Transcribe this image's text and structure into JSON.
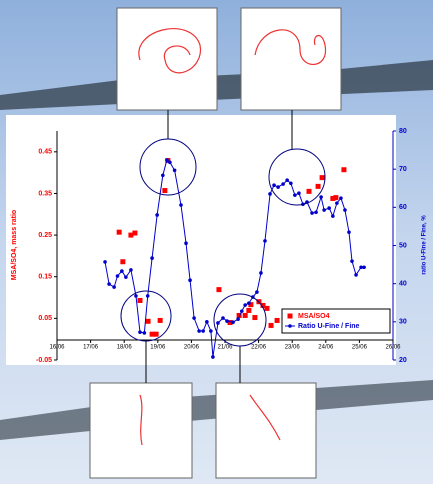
{
  "chart_data": {
    "type": "scatter-line",
    "x_label_left": "MSA/SO4, mass ratio",
    "y2_label": "ratio U-Fine / Fine, %",
    "xlim": [
      16,
      26
    ],
    "xticks": [
      {
        "value": 16,
        "label": "16/06"
      },
      {
        "value": 17,
        "label": "17/06"
      },
      {
        "value": 18,
        "label": "18/06"
      },
      {
        "value": 19,
        "label": "19/06"
      },
      {
        "value": 20,
        "label": "20/06"
      },
      {
        "value": 21,
        "label": "21/06"
      },
      {
        "value": 22,
        "label": "22/06"
      },
      {
        "value": 23,
        "label": "23/06"
      },
      {
        "value": 24,
        "label": "24/06"
      },
      {
        "value": 25,
        "label": "25/06"
      },
      {
        "value": 26,
        "label": "26/06"
      }
    ],
    "ylim": [
      -0.05,
      0.5
    ],
    "yticks": [
      -0.05,
      0.05,
      0.15,
      0.25,
      0.35,
      0.45
    ],
    "y2lim": [
      20,
      80
    ],
    "y2ticks": [
      20,
      30,
      40,
      50,
      60,
      70,
      80
    ],
    "legend": "lower right",
    "series": [
      {
        "name": "MSA/SO4",
        "color": "#ff0000",
        "marker": "square",
        "line": false,
        "x": [
          17.85,
          17.96,
          18.2,
          18.32,
          18.47,
          18.71,
          18.83,
          18.95,
          19.07,
          19.21,
          19.3,
          20.82,
          21.15,
          21.42,
          21.6,
          21.71,
          21.77,
          21.89,
          22.01,
          22.13,
          22.25,
          22.37,
          22.55,
          23.5,
          23.77,
          23.89,
          24.21,
          24.3,
          24.54
        ],
        "values": [
          0.257,
          0.186,
          0.25,
          0.255,
          0.093,
          0.043,
          0.012,
          0.012,
          0.045,
          0.357,
          0.429,
          0.119,
          0.04,
          0.057,
          0.057,
          0.069,
          0.083,
          0.052,
          0.09,
          0.081,
          0.074,
          0.033,
          0.045,
          0.355,
          0.367,
          0.388,
          0.338,
          0.34,
          0.407
        ]
      },
      {
        "name": "Ratio U-Fine / Fine",
        "color": "#0000cc",
        "marker": "circle",
        "line": true,
        "axis": "y2",
        "x": [
          17.43,
          17.55,
          17.7,
          17.8,
          17.93,
          18.05,
          18.2,
          18.35,
          18.47,
          18.6,
          18.7,
          18.83,
          18.98,
          19.15,
          19.27,
          19.36,
          19.5,
          19.69,
          19.84,
          19.96,
          20.08,
          20.23,
          20.35,
          20.46,
          20.58,
          20.64,
          20.79,
          20.94,
          21.06,
          21.24,
          21.39,
          21.5,
          21.6,
          21.71,
          21.83,
          21.95,
          22.07,
          22.19,
          22.34,
          22.46,
          22.58,
          22.73,
          22.85,
          22.96,
          23.08,
          23.2,
          23.32,
          23.44,
          23.59,
          23.71,
          23.86,
          23.95,
          24.1,
          24.21,
          24.33,
          24.45,
          24.57,
          24.69,
          24.78,
          24.9,
          25.05,
          25.14
        ],
        "values": [
          45.7,
          39.9,
          39.1,
          42,
          43.3,
          41.7,
          43.6,
          36.8,
          27.3,
          27.1,
          36.8,
          46.7,
          58,
          68.4,
          72.4,
          71.8,
          69.7,
          60.6,
          50.6,
          40.9,
          31,
          27.6,
          27.6,
          30,
          27.6,
          20.8,
          29.7,
          31,
          30.2,
          29.9,
          30.7,
          32.8,
          34.4,
          34.9,
          36.5,
          37.8,
          42.8,
          51.2,
          63.5,
          65.8,
          65.3,
          66.1,
          67.1,
          66.3,
          63.2,
          63.7,
          60.8,
          61.4,
          58.5,
          58.7,
          62.7,
          59.3,
          59.8,
          57.7,
          61.1,
          62.4,
          59.3,
          53.5,
          45.9,
          42.3,
          44.3,
          44.3
        ]
      }
    ]
  }
}
